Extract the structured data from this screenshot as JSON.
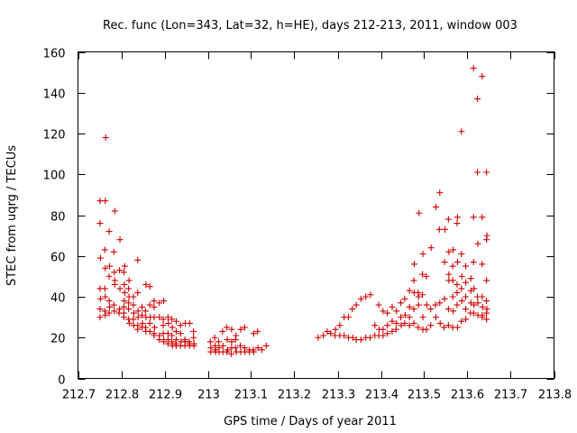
{
  "chart_data": {
    "type": "scatter",
    "title": "Rec. func (Lon=343, Lat=32, h=HE), days 212-213, 2011, window 003",
    "xlabel": "GPS time / Days of year 2011",
    "ylabel": "STEC from uqrg / TECUs",
    "xlim": [
      212.7,
      213.8
    ],
    "ylim": [
      0,
      160
    ],
    "xticks": [
      212.7,
      212.8,
      212.9,
      213,
      213.1,
      213.2,
      213.3,
      213.4,
      213.5,
      213.6,
      213.7,
      213.8
    ],
    "xtick_labels": [
      "212.7",
      "212.8",
      "212.9",
      "213",
      "213.1",
      "213.2",
      "213.3",
      "213.4",
      "213.5",
      "213.6",
      "213.7",
      "213.8"
    ],
    "yticks": [
      0,
      20,
      40,
      60,
      80,
      100,
      120,
      140,
      160
    ],
    "ytick_labels": [
      "0",
      "20",
      "40",
      "60",
      "80",
      "100",
      "120",
      "140",
      "160"
    ],
    "grid": false,
    "legend": "none",
    "marker": "plus",
    "color": "#cc0000",
    "series": [
      {
        "name": "STEC",
        "points": [
          [
            212.751,
            87
          ],
          [
            212.751,
            76
          ],
          [
            212.752,
            59
          ],
          [
            212.751,
            44
          ],
          [
            212.752,
            39
          ],
          [
            212.751,
            34
          ],
          [
            212.751,
            30
          ],
          [
            212.763,
            87
          ],
          [
            212.762,
            63
          ],
          [
            212.763,
            54
          ],
          [
            212.762,
            44
          ],
          [
            212.763,
            40
          ],
          [
            212.762,
            33
          ],
          [
            212.763,
            31
          ],
          [
            212.764,
            118
          ],
          [
            212.772,
            72
          ],
          [
            212.773,
            55
          ],
          [
            212.772,
            50
          ],
          [
            212.772,
            38
          ],
          [
            212.773,
            35
          ],
          [
            212.772,
            32
          ],
          [
            212.785,
            82
          ],
          [
            212.783,
            62
          ],
          [
            212.784,
            52
          ],
          [
            212.785,
            48
          ],
          [
            212.785,
            46
          ],
          [
            212.783,
            36
          ],
          [
            212.784,
            33
          ],
          [
            212.797,
            68
          ],
          [
            212.796,
            53
          ],
          [
            212.797,
            44
          ],
          [
            212.796,
            34
          ],
          [
            212.795,
            32
          ],
          [
            212.808,
            55
          ],
          [
            212.806,
            52
          ],
          [
            212.807,
            46
          ],
          [
            212.808,
            42
          ],
          [
            212.807,
            38
          ],
          [
            212.806,
            35
          ],
          [
            212.806,
            32
          ],
          [
            212.806,
            30
          ],
          [
            212.818,
            48
          ],
          [
            212.817,
            44
          ],
          [
            212.818,
            40
          ],
          [
            212.817,
            37
          ],
          [
            212.817,
            34
          ],
          [
            212.817,
            29
          ],
          [
            212.819,
            27
          ],
          [
            212.828,
            40
          ],
          [
            212.828,
            36
          ],
          [
            212.829,
            32
          ],
          [
            212.828,
            29
          ],
          [
            212.829,
            26
          ],
          [
            212.838,
            58
          ],
          [
            212.838,
            42
          ],
          [
            212.839,
            33
          ],
          [
            212.839,
            30
          ],
          [
            212.838,
            26
          ],
          [
            212.838,
            24
          ],
          [
            212.848,
            35
          ],
          [
            212.848,
            31
          ],
          [
            212.849,
            27
          ],
          [
            212.848,
            25
          ],
          [
            212.857,
            46
          ],
          [
            212.856,
            33
          ],
          [
            212.857,
            30
          ],
          [
            212.856,
            25
          ],
          [
            212.857,
            23
          ],
          [
            212.866,
            45
          ],
          [
            212.866,
            36
          ],
          [
            212.867,
            30
          ],
          [
            212.866,
            27
          ],
          [
            212.866,
            23
          ],
          [
            212.876,
            38
          ],
          [
            212.876,
            35
          ],
          [
            212.876,
            30
          ],
          [
            212.877,
            25
          ],
          [
            212.876,
            22
          ],
          [
            212.876,
            21
          ],
          [
            212.888,
            37
          ],
          [
            212.888,
            30
          ],
          [
            212.888,
            21
          ],
          [
            212.888,
            19
          ],
          [
            212.898,
            38
          ],
          [
            212.897,
            29
          ],
          [
            212.897,
            26
          ],
          [
            212.897,
            22
          ],
          [
            212.898,
            19
          ],
          [
            212.898,
            18
          ],
          [
            212.908,
            30
          ],
          [
            212.909,
            27
          ],
          [
            212.908,
            22
          ],
          [
            212.908,
            19
          ],
          [
            212.908,
            17
          ],
          [
            212.917,
            29
          ],
          [
            212.918,
            25
          ],
          [
            212.917,
            21
          ],
          [
            212.917,
            18
          ],
          [
            212.918,
            16
          ],
          [
            212.927,
            28
          ],
          [
            212.927,
            23
          ],
          [
            212.927,
            19
          ],
          [
            212.926,
            17
          ],
          [
            212.927,
            16
          ],
          [
            212.937,
            26
          ],
          [
            212.937,
            22
          ],
          [
            212.938,
            18
          ],
          [
            212.937,
            16
          ],
          [
            212.948,
            27
          ],
          [
            212.947,
            19
          ],
          [
            212.948,
            18
          ],
          [
            212.947,
            16
          ],
          [
            212.958,
            27
          ],
          [
            212.957,
            18
          ],
          [
            212.958,
            16
          ],
          [
            212.958,
            17
          ],
          [
            212.967,
            23
          ],
          [
            212.967,
            20
          ],
          [
            212.968,
            17
          ],
          [
            212.968,
            16
          ],
          [
            213.006,
            18
          ],
          [
            213.007,
            15
          ],
          [
            213.007,
            13
          ],
          [
            213.016,
            20
          ],
          [
            213.017,
            16
          ],
          [
            213.017,
            14
          ],
          [
            213.018,
            13
          ],
          [
            213.025,
            18
          ],
          [
            213.026,
            15
          ],
          [
            213.026,
            13
          ],
          [
            213.034,
            23
          ],
          [
            213.035,
            16
          ],
          [
            213.035,
            13
          ],
          [
            213.044,
            25
          ],
          [
            213.045,
            19
          ],
          [
            213.046,
            14
          ],
          [
            213.044,
            13
          ],
          [
            213.055,
            24
          ],
          [
            213.055,
            18
          ],
          [
            213.055,
            15
          ],
          [
            213.054,
            12
          ],
          [
            213.065,
            21
          ],
          [
            213.064,
            19
          ],
          [
            213.064,
            15
          ],
          [
            213.066,
            13
          ],
          [
            213.076,
            24
          ],
          [
            213.075,
            16
          ],
          [
            213.076,
            13
          ],
          [
            213.085,
            25
          ],
          [
            213.085,
            15
          ],
          [
            213.086,
            13
          ],
          [
            213.096,
            14
          ],
          [
            213.096,
            13
          ],
          [
            213.106,
            22
          ],
          [
            213.105,
            14
          ],
          [
            213.106,
            13
          ],
          [
            213.115,
            23
          ],
          [
            213.116,
            15
          ],
          [
            213.125,
            14
          ],
          [
            213.135,
            16
          ],
          [
            213.255,
            20
          ],
          [
            213.267,
            21
          ],
          [
            213.276,
            23
          ],
          [
            213.284,
            22
          ],
          [
            213.295,
            24
          ],
          [
            213.294,
            21
          ],
          [
            213.305,
            26
          ],
          [
            213.305,
            21
          ],
          [
            213.315,
            30
          ],
          [
            213.315,
            21
          ],
          [
            213.325,
            30
          ],
          [
            213.325,
            20
          ],
          [
            213.334,
            34
          ],
          [
            213.335,
            20
          ],
          [
            213.343,
            36
          ],
          [
            213.343,
            19
          ],
          [
            213.354,
            39
          ],
          [
            213.354,
            19
          ],
          [
            213.365,
            40
          ],
          [
            213.365,
            20
          ],
          [
            213.376,
            41
          ],
          [
            213.375,
            20
          ],
          [
            213.386,
            26
          ],
          [
            213.386,
            21
          ],
          [
            213.395,
            36
          ],
          [
            213.396,
            24
          ],
          [
            213.395,
            21
          ],
          [
            213.405,
            33
          ],
          [
            213.405,
            24
          ],
          [
            213.405,
            21
          ],
          [
            213.415,
            32
          ],
          [
            213.415,
            26
          ],
          [
            213.415,
            22
          ],
          [
            213.426,
            35
          ],
          [
            213.426,
            28
          ],
          [
            213.426,
            23
          ],
          [
            213.436,
            33
          ],
          [
            213.436,
            27
          ],
          [
            213.435,
            24
          ],
          [
            213.446,
            37
          ],
          [
            213.446,
            30
          ],
          [
            213.447,
            26
          ],
          [
            213.455,
            39
          ],
          [
            213.456,
            31
          ],
          [
            213.455,
            27
          ],
          [
            213.466,
            43
          ],
          [
            213.466,
            35
          ],
          [
            213.466,
            30
          ],
          [
            213.466,
            26
          ],
          [
            213.477,
            56
          ],
          [
            213.476,
            48
          ],
          [
            213.477,
            42
          ],
          [
            213.476,
            34
          ],
          [
            213.476,
            27
          ],
          [
            213.488,
            81
          ],
          [
            213.486,
            42
          ],
          [
            213.487,
            40
          ],
          [
            213.487,
            36
          ],
          [
            213.486,
            25
          ],
          [
            213.497,
            61
          ],
          [
            213.496,
            51
          ],
          [
            213.496,
            41
          ],
          [
            213.497,
            30
          ],
          [
            213.497,
            24
          ],
          [
            213.505,
            50
          ],
          [
            213.506,
            36
          ],
          [
            213.505,
            24
          ],
          [
            213.516,
            64
          ],
          [
            213.515,
            34
          ],
          [
            213.515,
            26
          ],
          [
            213.527,
            84
          ],
          [
            213.526,
            36
          ],
          [
            213.527,
            30
          ],
          [
            213.536,
            91
          ],
          [
            213.535,
            73
          ],
          [
            213.536,
            37
          ],
          [
            213.537,
            27
          ],
          [
            213.548,
            73
          ],
          [
            213.547,
            57
          ],
          [
            213.547,
            39
          ],
          [
            213.546,
            25
          ],
          [
            213.556,
            78
          ],
          [
            213.557,
            62
          ],
          [
            213.557,
            51
          ],
          [
            213.557,
            48
          ],
          [
            213.556,
            34
          ],
          [
            213.556,
            26
          ],
          [
            213.567,
            63
          ],
          [
            213.566,
            55
          ],
          [
            213.566,
            48
          ],
          [
            213.566,
            40
          ],
          [
            213.567,
            33
          ],
          [
            213.566,
            25
          ],
          [
            213.577,
            79
          ],
          [
            213.576,
            76
          ],
          [
            213.577,
            57
          ],
          [
            213.576,
            46
          ],
          [
            213.576,
            42
          ],
          [
            213.576,
            36
          ],
          [
            213.577,
            25
          ],
          [
            213.586,
            121
          ],
          [
            213.586,
            61
          ],
          [
            213.587,
            50
          ],
          [
            213.586,
            44
          ],
          [
            213.587,
            38
          ],
          [
            213.586,
            28
          ],
          [
            213.596,
            55
          ],
          [
            213.596,
            47
          ],
          [
            213.596,
            40
          ],
          [
            213.596,
            34
          ],
          [
            213.596,
            29
          ],
          [
            213.608,
            49
          ],
          [
            213.608,
            43
          ],
          [
            213.608,
            37
          ],
          [
            213.607,
            32
          ],
          [
            213.614,
            152
          ],
          [
            213.614,
            79
          ],
          [
            213.614,
            57
          ],
          [
            213.615,
            44
          ],
          [
            213.615,
            36
          ],
          [
            213.614,
            32
          ],
          [
            213.623,
            137
          ],
          [
            213.623,
            101
          ],
          [
            213.624,
            66
          ],
          [
            213.623,
            40
          ],
          [
            213.624,
            37
          ],
          [
            213.624,
            31
          ],
          [
            213.634,
            148
          ],
          [
            213.634,
            79
          ],
          [
            213.634,
            56
          ],
          [
            213.634,
            40
          ],
          [
            213.635,
            35
          ],
          [
            213.634,
            31
          ],
          [
            213.634,
            30
          ],
          [
            213.644,
            101
          ],
          [
            213.645,
            70
          ],
          [
            213.644,
            68
          ],
          [
            213.644,
            48
          ],
          [
            213.644,
            38
          ],
          [
            213.645,
            34
          ],
          [
            213.644,
            32
          ],
          [
            213.644,
            29
          ]
        ]
      }
    ]
  }
}
